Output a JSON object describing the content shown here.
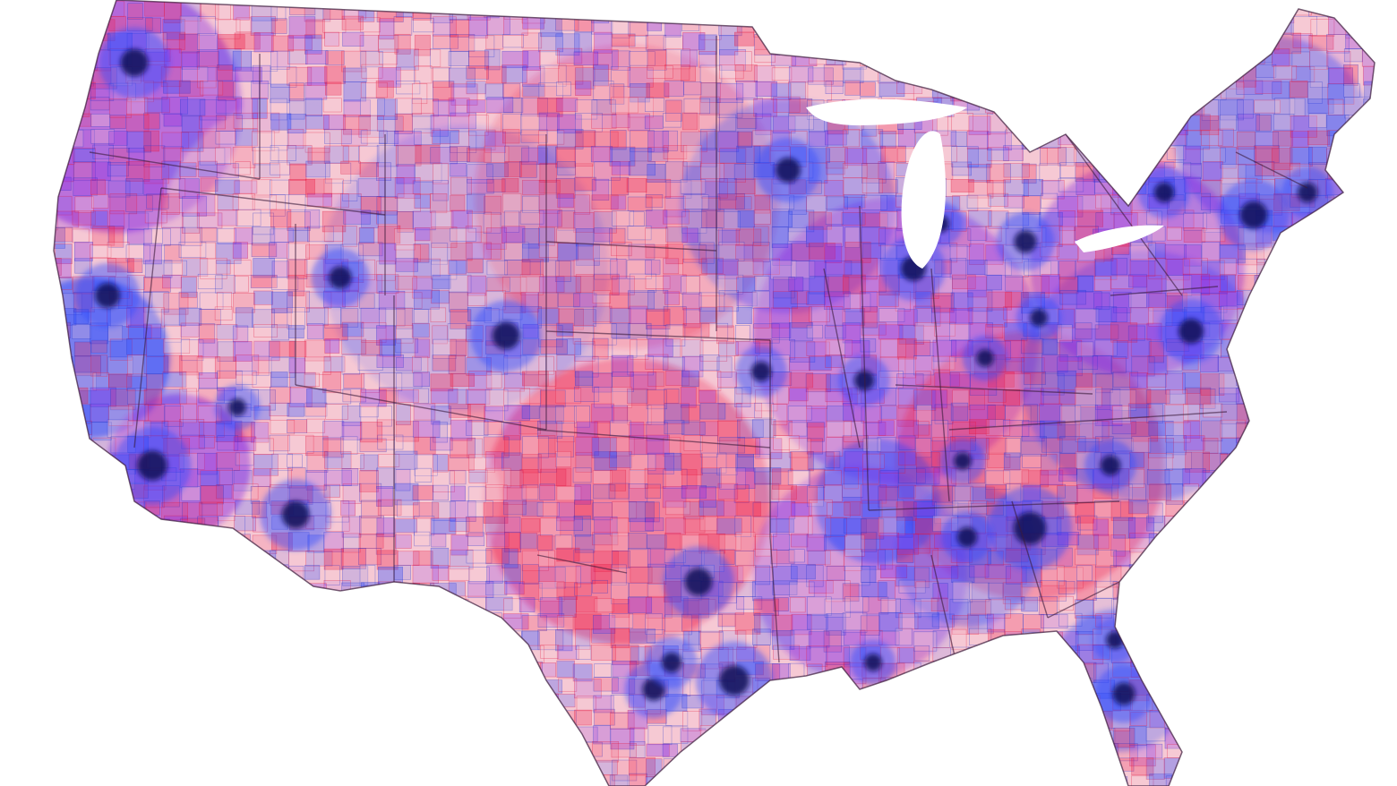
{
  "map": {
    "type": "choropleth",
    "region": "contiguous-united-states",
    "granularity": "county",
    "color_scheme": {
      "low": "#f6c9d4",
      "red": "#ee1f4a",
      "purple": "#8a2be2",
      "blue": "#2a4bff",
      "dark": "#0a0a55",
      "border_red": "#e3163c",
      "border_blue": "#2233cc",
      "state_border": "#3a1a3a",
      "background": "#ffffff"
    },
    "legend": "none",
    "title": "",
    "labels": []
  }
}
